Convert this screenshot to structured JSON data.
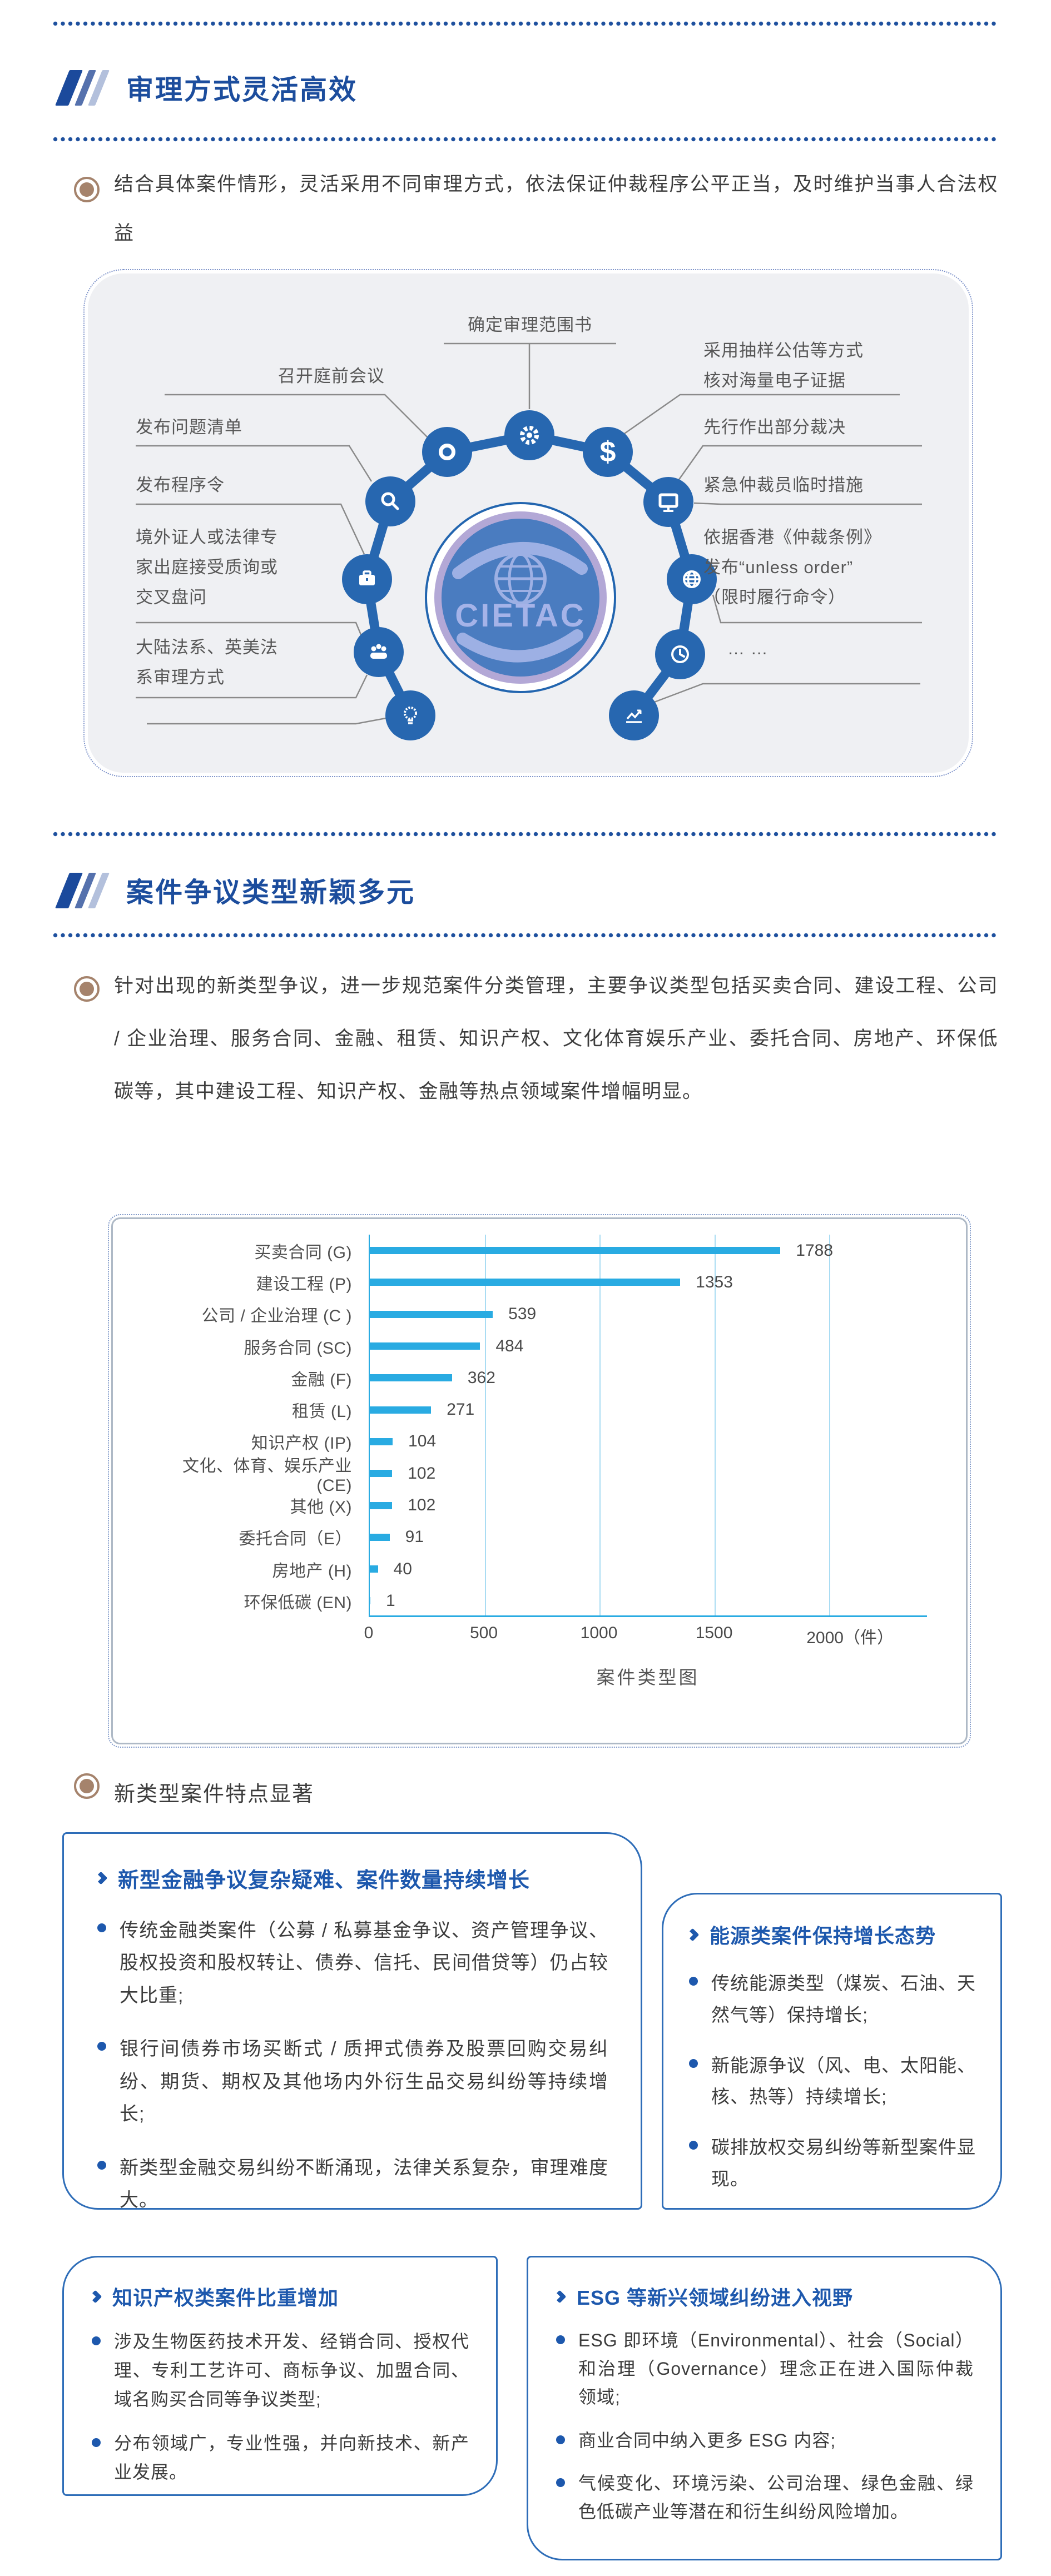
{
  "section1": {
    "title": "审理方式灵活高效",
    "intro": "结合具体案件情形，灵活采用不同审理方式，依法保证仲裁程序公平正当，及时维护当事人合法权益",
    "diagram": {
      "center_logo": "CIETAC",
      "top_label": "确定审理范围书",
      "left_labels": [
        [
          "召开庭前会议"
        ],
        [
          "发布问题清单"
        ],
        [
          "发布程序令"
        ],
        [
          "境外证人或法律专",
          "家出庭接受质询或",
          "交叉盘问"
        ],
        [
          "大陆法系、英美法",
          "系审理方式"
        ]
      ],
      "right_labels": [
        [
          "采用抽样公估等方式",
          "核对海量电子证据"
        ],
        [
          "先行作出部分裁决"
        ],
        [
          "紧急仲裁员临时措施"
        ],
        [
          "依据香港《仲裁条例》",
          "发布“unless order”",
          "（限时履行命令）"
        ],
        [
          "… …"
        ]
      ]
    }
  },
  "section2": {
    "title": "案件争议类型新颖多元",
    "intro": "针对出现的新类型争议，进一步规范案件分类管理，主要争议类型包括买卖合同、建设工程、公司 / 企业治理、服务合同、金融、租赁、知识产权、文化体育娱乐产业、委托合同、房地产、环保低碳等，其中建设工程、知识产权、金融等热点领域案件增幅明显。",
    "features_heading": "新类型案件特点显著",
    "boxes": [
      {
        "title": "新型金融争议复杂疑难、案件数量持续增长",
        "bullets": [
          "传统金融类案件（公募 / 私募基金争议、资产管理争议、股权投资和股权转让、债券、信托、民间借贷等）仍占较大比重;",
          "银行间债券市场买断式 / 质押式债券及股票回购交易纠纷、期货、期权及其他场内外衍生品交易纠纷等持续增长;",
          "新类型金融交易纠纷不断涌现，法律关系复杂，审理难度大。"
        ]
      },
      {
        "title": "能源类案件保持增长态势",
        "bullets": [
          "传统能源类型（煤炭、石油、天然气等）保持增长;",
          "新能源争议（风、电、太阳能、核、热等）持续增长;",
          "碳排放权交易纠纷等新型案件显现。"
        ]
      },
      {
        "title": "知识产权类案件比重增加",
        "bullets": [
          "涉及生物医药技术开发、经销合同、授权代理、专利工艺许可、商标争议、加盟合同、域名购买合同等争议类型;",
          "分布领域广，专业性强，并向新技术、新产业发展。"
        ]
      },
      {
        "title": "ESG 等新兴领域纠纷进入视野",
        "bullets": [
          "ESG 即环境（Environmental）、社会（Social）和治理（Governance）理念正在进入国际仲裁领域;",
          "商业合同中纳入更多 ESG 内容;",
          "气候变化、环境污染、公司治理、绿色金融、绿色低碳产业等潜在和衍生纠纷风险增加。"
        ]
      }
    ]
  },
  "chart_data": {
    "type": "bar",
    "orientation": "horizontal",
    "title": "案件类型图",
    "categories": [
      "买卖合同 (G)",
      "建设工程 (P)",
      "公司 / 企业治理 (C )",
      "服务合同 (SC)",
      "金融 (F)",
      "租赁 (L)",
      "知识产权 (IP)",
      "文化、体育、娱乐产业 (CE)",
      "其他 (X)",
      "委托合同（E）",
      "房地产 (H)",
      "环保低碳 (EN)"
    ],
    "values": [
      1788,
      1353,
      539,
      484,
      362,
      271,
      104,
      102,
      102,
      91,
      40,
      1
    ],
    "x_ticks": [
      "0",
      "500",
      "1000",
      "1500",
      "2000（件）"
    ],
    "xlim": [
      0,
      2000
    ],
    "unit": "件",
    "bar_color": "#29abe2",
    "grid": "vertical-every-500"
  }
}
